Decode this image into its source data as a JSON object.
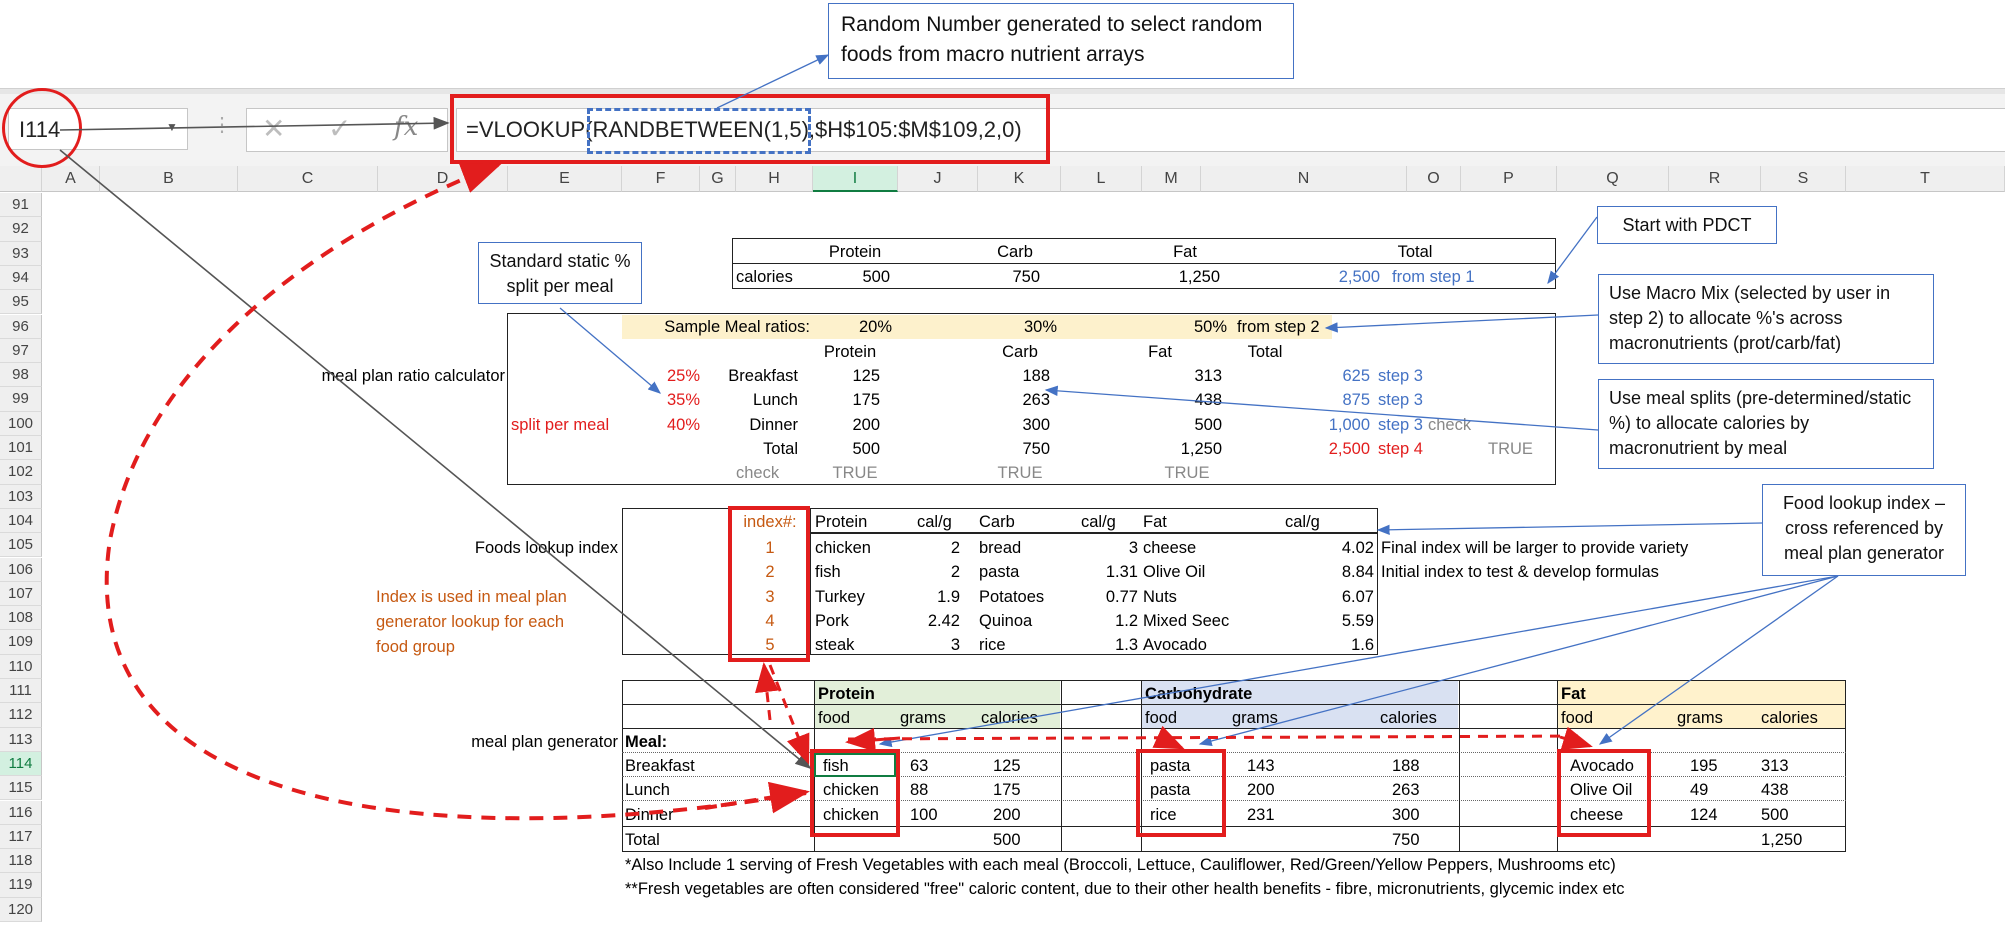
{
  "formula_bar": {
    "name_box": "I114",
    "fx_label": "fx",
    "formula": "=VLOOKUP(RANDBETWEEN(1,5),$H$105:$M$109,2,0)"
  },
  "columns": [
    "A",
    "B",
    "C",
    "D",
    "E",
    "F",
    "G",
    "H",
    "I",
    "J",
    "K",
    "L",
    "M",
    "N",
    "O",
    "P",
    "Q",
    "R",
    "S",
    "T"
  ],
  "rows": [
    "91",
    "92",
    "93",
    "94",
    "95",
    "96",
    "97",
    "98",
    "99",
    "100",
    "101",
    "102",
    "103",
    "104",
    "105",
    "106",
    "107",
    "108",
    "109",
    "110",
    "111",
    "112",
    "113",
    "114",
    "115",
    "116",
    "117",
    "118",
    "119",
    "120"
  ],
  "callouts": {
    "random_number": "Random Number generated to select random foods from macro nutrient arrays",
    "standard_static": "Standard static % split per meal",
    "start_pdct": "Start with PDCT",
    "macro_mix": "Use Macro Mix (selected by user in step 2) to allocate %'s across macronutrients (prot/carb/fat)",
    "meal_splits": "Use meal splits (pre-determined/static %) to allocate calories by macronutrient by meal",
    "food_lookup": "Food lookup index – cross referenced by meal plan generator"
  },
  "calorie_table": {
    "headers": [
      "Protein",
      "Carb",
      "Fat",
      "Total"
    ],
    "row_label": "calories",
    "values": [
      "500",
      "750",
      "1,250",
      "2,500"
    ],
    "note": "from step 1"
  },
  "ratios": {
    "label": "Sample Meal ratios:",
    "values": [
      "20%",
      "30%",
      "50%"
    ],
    "note": "from step 2"
  },
  "ratio_calc": {
    "section_label": "meal plan ratio calculator",
    "headers": [
      "Protein",
      "Carb",
      "Fat",
      "Total"
    ],
    "split_label": "split per meal",
    "rows": [
      {
        "pct": "25%",
        "meal": "Breakfast",
        "protein": "125",
        "carb": "188",
        "fat": "313",
        "total": "625",
        "step": "step 3"
      },
      {
        "pct": "35%",
        "meal": "Lunch",
        "protein": "175",
        "carb": "263",
        "fat": "438",
        "total": "875",
        "step": "step 3"
      },
      {
        "pct": "40%",
        "meal": "Dinner",
        "protein": "200",
        "carb": "300",
        "fat": "500",
        "total": "1,000",
        "step": "step 3"
      },
      {
        "pct": "",
        "meal": "Total",
        "protein": "500",
        "carb": "750",
        "fat": "1,250",
        "total": "2,500",
        "step": "step 4"
      }
    ],
    "check_label": "check",
    "check_right": "check",
    "true_right": "TRUE",
    "check_values": [
      "TRUE",
      "TRUE",
      "TRUE"
    ]
  },
  "foods_index": {
    "label": "Foods lookup index",
    "headers": {
      "index": "index#:",
      "protein": "Protein",
      "calg1": "cal/g",
      "carb": "Carb",
      "calg2": "cal/g",
      "fat": "Fat",
      "calg3": "cal/g"
    },
    "rows": [
      {
        "i": "1",
        "p": "chicken",
        "pc": "2",
        "c": "bread",
        "cc": "3",
        "f": "cheese",
        "fc": "4.02"
      },
      {
        "i": "2",
        "p": "fish",
        "pc": "2",
        "c": "pasta",
        "cc": "1.31",
        "f": "Olive Oil",
        "fc": "8.84"
      },
      {
        "i": "3",
        "p": "Turkey",
        "pc": "1.9",
        "c": "Potatoes",
        "cc": "0.77",
        "f": "Nuts",
        "fc": "6.07"
      },
      {
        "i": "4",
        "p": "Pork",
        "pc": "2.42",
        "c": "Quinoa",
        "cc": "1.2",
        "f": "Mixed Seec",
        "fc": "5.59"
      },
      {
        "i": "5",
        "p": "steak",
        "pc": "3",
        "c": "rice",
        "cc": "1.3",
        "f": "Avocado",
        "fc": "1.6"
      }
    ],
    "note1": "Final index will be larger to provide variety",
    "note2": "Initial index to test & develop formulas",
    "index_note": "Index is used in meal plan generator lookup for each food group"
  },
  "meal_plan": {
    "label": "meal plan generator",
    "meal_header": "Meal:",
    "groups": [
      "Protein",
      "Carbohydrate",
      "Fat"
    ],
    "sub": [
      "food",
      "grams",
      "calories"
    ],
    "rows": [
      {
        "meal": "Breakfast",
        "pf": "fish",
        "pg": "63",
        "pc": "125",
        "cf": "pasta",
        "cg": "143",
        "cc": "188",
        "ff": "Avocado",
        "fg": "195",
        "fcal": "313"
      },
      {
        "meal": "Lunch",
        "pf": "chicken",
        "pg": "88",
        "pc": "175",
        "cf": "pasta",
        "cg": "200",
        "cc": "263",
        "ff": "Olive Oil",
        "fg": "49",
        "fcal": "438"
      },
      {
        "meal": "Dinner",
        "pf": "chicken",
        "pg": "100",
        "pc": "200",
        "cf": "rice",
        "cg": "231",
        "cc": "300",
        "ff": "cheese",
        "fg": "124",
        "fcal": "500"
      }
    ],
    "total_label": "Total",
    "totals": [
      "500",
      "750",
      "1,250"
    ],
    "footnote1": "*Also Include 1 serving of Fresh Vegetables with each meal (Broccoli, Lettuce, Cauliflower, Red/Green/Yellow Peppers, Mushrooms etc)",
    "footnote2": "**Fresh vegetables are often considered \"free\" caloric content, due to their other health benefits - fibre, micronutrients, glycemic index etc"
  },
  "colors": {
    "annotation_red": "#e21d1d",
    "annotation_blue": "#4472c4",
    "ratio_fill": "#fdf1cc",
    "protein_fill": "#e2efd9",
    "carb_fill": "#d9e1f2",
    "fat_fill": "#fff2cc",
    "excel_green": "#107c41"
  }
}
